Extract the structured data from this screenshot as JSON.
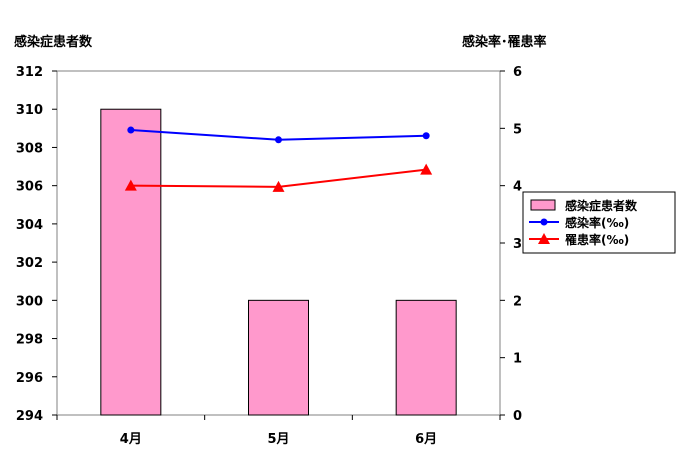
{
  "chart_data": {
    "type": "bar",
    "categories": [
      "4月",
      "5月",
      "6月"
    ],
    "y_left": {
      "label": "感染症患者数",
      "min": 294,
      "max": 312,
      "step": 2
    },
    "y_right": {
      "label": "感染率･罹患率",
      "min": 0,
      "max": 6,
      "step": 1
    },
    "series": [
      {
        "name": "感染症患者数",
        "kind": "bar",
        "axis": "left",
        "values": [
          310,
          300,
          300
        ],
        "color": "#ff99cc",
        "stroke": "#000000"
      },
      {
        "name": "感染率(‰)",
        "kind": "line",
        "axis": "right",
        "marker": "circle",
        "values": [
          4.97,
          4.8,
          4.87
        ],
        "color": "#0000ff"
      },
      {
        "name": "罹患率(‰)",
        "kind": "line",
        "axis": "right",
        "marker": "triangle",
        "values": [
          4.0,
          3.98,
          4.28
        ],
        "color": "#ff0000"
      }
    ],
    "grid": false,
    "legend_position": "right"
  }
}
